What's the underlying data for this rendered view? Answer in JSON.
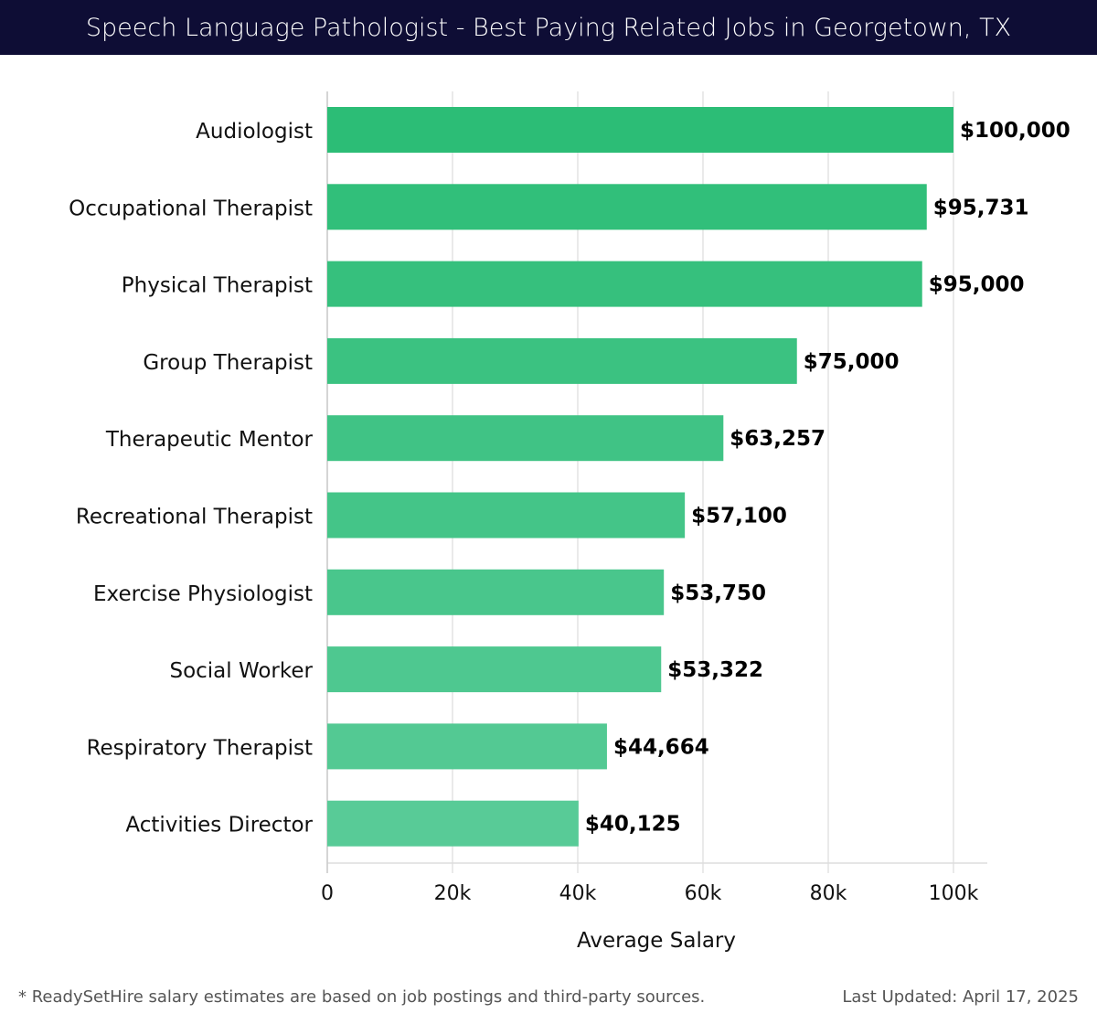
{
  "header": {
    "title": "Speech Language Pathologist - Best Paying Related Jobs in Georgetown, TX"
  },
  "chart_data": {
    "type": "bar",
    "orientation": "horizontal",
    "title": "Speech Language Pathologist - Best Paying Related Jobs in Georgetown, TX",
    "xlabel": "Average Salary",
    "ylabel": "",
    "xlim": [
      0,
      100000
    ],
    "grid": true,
    "xticks": [
      0,
      20000,
      40000,
      60000,
      80000,
      100000
    ],
    "xtick_labels": [
      "0",
      "20k",
      "40k",
      "60k",
      "80k",
      "100k"
    ],
    "categories": [
      "Audiologist",
      "Occupational Therapist",
      "Physical Therapist",
      "Group Therapist",
      "Therapeutic Mentor",
      "Recreational Therapist",
      "Exercise Physiologist",
      "Social Worker",
      "Respiratory Therapist",
      "Activities Director"
    ],
    "values": [
      100000,
      95731,
      95000,
      75000,
      63257,
      57100,
      53750,
      53322,
      44664,
      40125
    ],
    "value_labels": [
      "$100,000",
      "$95,731",
      "$95,000",
      "$75,000",
      "$63,257",
      "$57,100",
      "$53,750",
      "$53,322",
      "$44,664",
      "$40,125"
    ],
    "colors": {
      "top": "#2cbd76",
      "bottom": "#58cb97"
    }
  },
  "footer": {
    "note": "* ReadySetHire salary estimates are based on job postings and third-party sources.",
    "updated": "Last Updated: April 17, 2025"
  }
}
